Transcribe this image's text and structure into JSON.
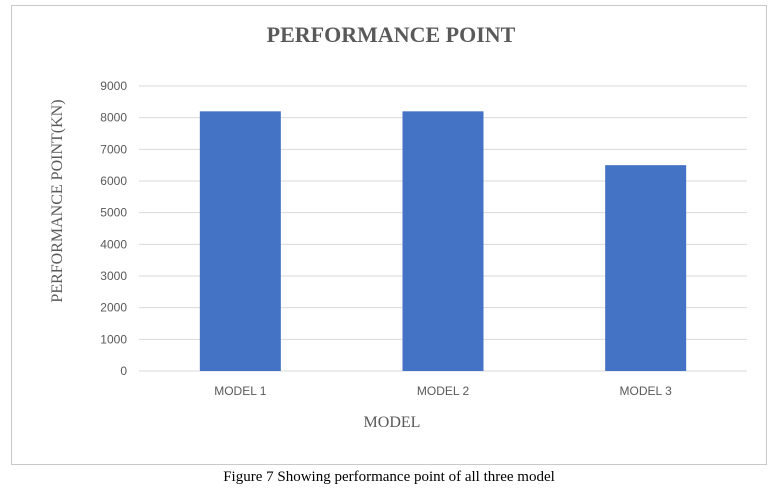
{
  "chart_data": {
    "type": "bar",
    "title": "PERFORMANCE POINT",
    "xlabel": "MODEL",
    "ylabel": "PERFORMANCE  POINT(KN)",
    "categories": [
      "MODEL 1",
      "MODEL 2",
      "MODEL 3"
    ],
    "values": [
      8200,
      8200,
      6500
    ],
    "ylim": [
      0,
      9000
    ],
    "yticks": [
      "0",
      "1000",
      "2000",
      "3000",
      "4000",
      "5000",
      "6000",
      "7000",
      "8000",
      "9000"
    ],
    "grid": true,
    "legend": "none",
    "bar_color": "#4472c4",
    "grid_color": "#d9d9d9",
    "title_color": "#595959",
    "tick_color": "#595959"
  },
  "caption": "Figure 7 Showing performance point of all three model"
}
